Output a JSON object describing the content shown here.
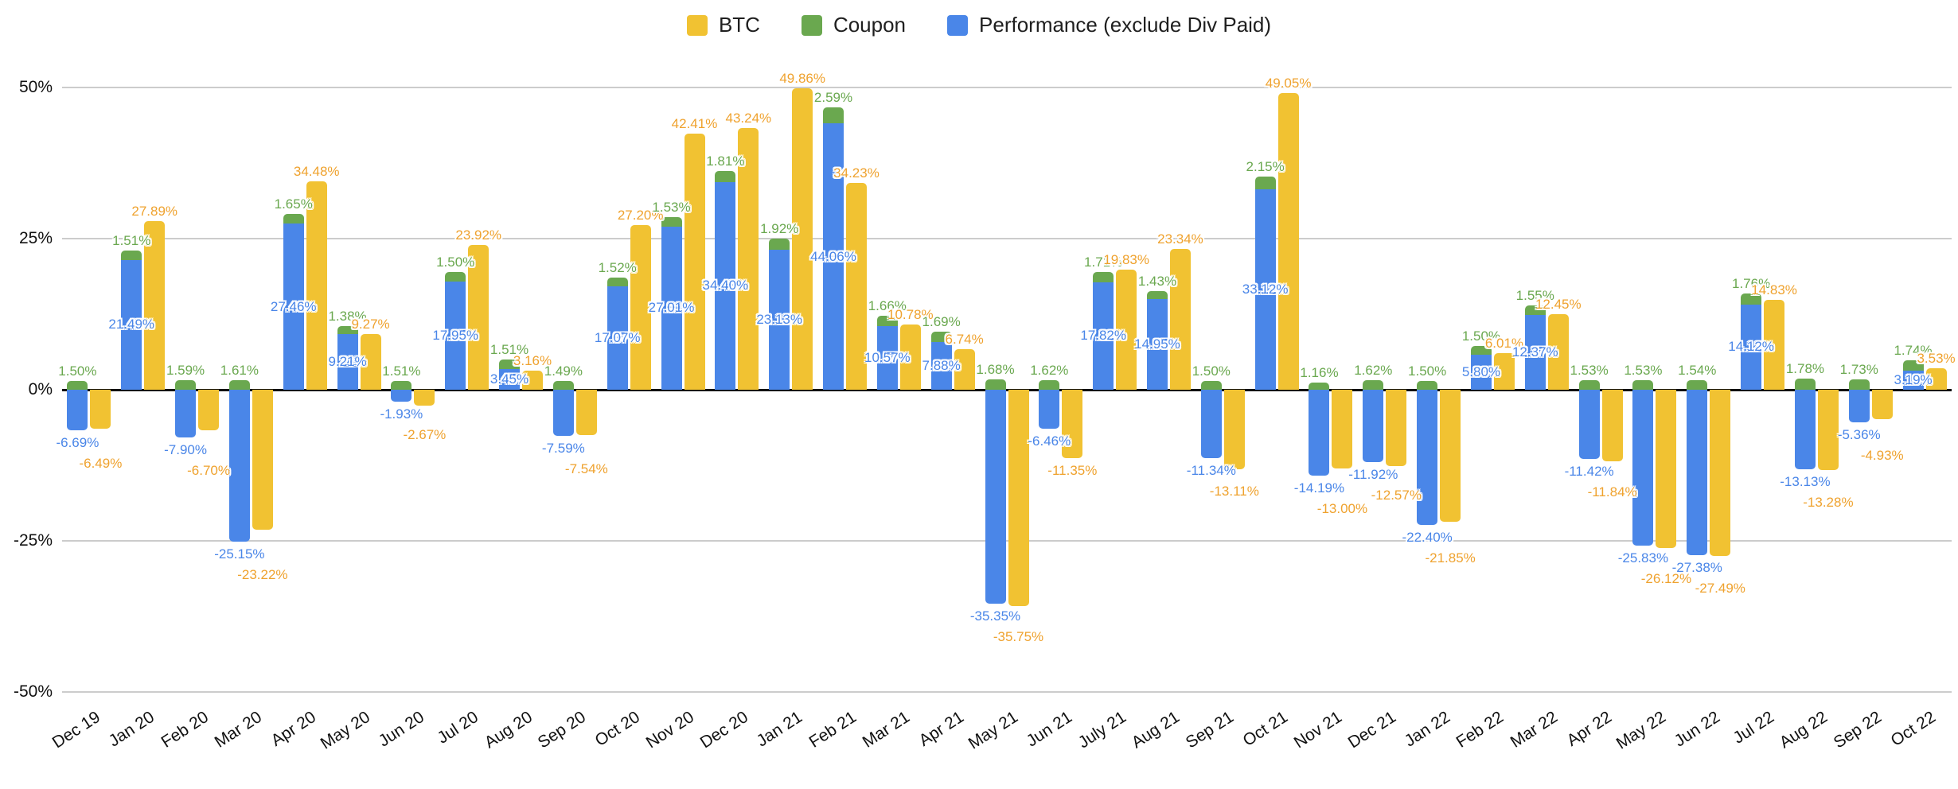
{
  "chart_data": {
    "type": "bar",
    "title": "",
    "xlabel": "",
    "ylabel": "",
    "ylim": [
      -50,
      50
    ],
    "grid": true,
    "legend_position": "top",
    "stacking": "Coupon is stacked on top of Performance in one column; BTC is a separate column per month",
    "categories": [
      "Dec 19",
      "Jan 20",
      "Feb 20",
      "Mar 20",
      "Apr 20",
      "May 20",
      "Jun 20",
      "Jul 20",
      "Aug 20",
      "Sep 20",
      "Oct 20",
      "Nov 20",
      "Dec 20",
      "Jan 21",
      "Feb 21",
      "Mar 21",
      "Apr 21",
      "May 21",
      "Jun 21",
      "July 21",
      "Aug 21",
      "Sep 21",
      "Oct 21",
      "Nov 21",
      "Dec 21",
      "Jan 22",
      "Feb 22",
      "Mar 22",
      "Apr 22",
      "May 22",
      "Jun 22",
      "Jul 22",
      "Aug 22",
      "Sep 22",
      "Oct 22"
    ],
    "series": [
      {
        "name": "BTC",
        "color": "#F1C232",
        "label_color": "#EFA22E",
        "values": [
          -6.49,
          27.89,
          -6.7,
          -23.22,
          34.48,
          9.27,
          -2.67,
          23.92,
          3.16,
          -7.54,
          27.2,
          42.41,
          43.24,
          49.86,
          34.23,
          10.78,
          6.74,
          -35.75,
          -11.35,
          19.83,
          23.34,
          -13.11,
          49.05,
          -13.0,
          -12.57,
          -21.85,
          6.01,
          12.45,
          -11.84,
          -26.12,
          -27.49,
          14.83,
          -13.28,
          -4.93,
          3.53
        ]
      },
      {
        "name": "Coupon",
        "color": "#6AA84F",
        "label_color": "#6AA84F",
        "values": [
          1.5,
          1.51,
          1.59,
          1.61,
          1.65,
          1.38,
          1.51,
          1.5,
          1.51,
          1.49,
          1.52,
          1.53,
          1.81,
          1.92,
          2.59,
          1.66,
          1.69,
          1.68,
          1.62,
          1.71,
          1.43,
          1.5,
          2.15,
          1.16,
          1.62,
          1.5,
          1.5,
          1.55,
          1.53,
          1.53,
          1.54,
          1.76,
          1.78,
          1.73,
          1.74
        ]
      },
      {
        "name": "Performance (exclude Div Paid)",
        "color": "#4A86E8",
        "label_color": "#4A86E8",
        "values": [
          -6.69,
          21.49,
          -7.9,
          -25.15,
          27.46,
          9.21,
          -1.93,
          17.95,
          3.45,
          -7.59,
          17.07,
          27.01,
          34.4,
          23.13,
          44.06,
          10.57,
          7.88,
          -35.35,
          -6.46,
          17.82,
          14.95,
          -11.34,
          33.12,
          -14.19,
          -11.92,
          -22.4,
          5.8,
          12.37,
          -11.42,
          -25.83,
          -27.38,
          14.12,
          -13.13,
          -5.36,
          3.19
        ]
      }
    ],
    "y_axis": {
      "ticks": [
        {
          "value": 50,
          "label": "50%"
        },
        {
          "value": 25,
          "label": "25%"
        },
        {
          "value": 0,
          "label": "0%"
        },
        {
          "value": -25,
          "label": "-25%"
        },
        {
          "value": -50,
          "label": "-50%"
        }
      ]
    },
    "value_label_format": "0.00%"
  }
}
